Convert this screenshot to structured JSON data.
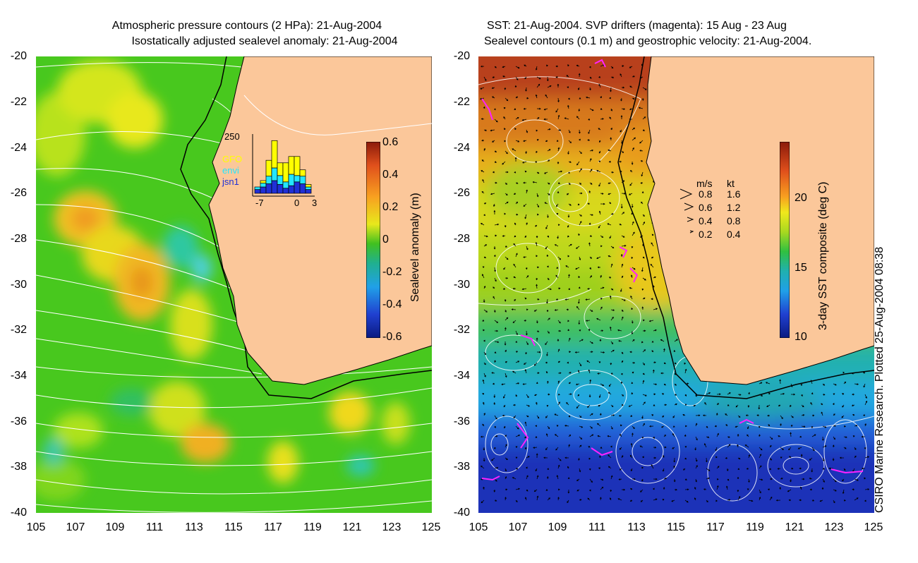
{
  "left_panel": {
    "title_line1": "Atmospheric pressure contours (2 HPa): 21-Aug-2004",
    "title_line2": "Isostatically adjusted sealevel anomaly: 21-Aug-2004",
    "colorbar": {
      "label": "Sealevel anomaly (m)",
      "ticks": [
        "0.6",
        "0.4",
        "0.2",
        "0",
        "-0.2",
        "-0.4",
        "-0.6"
      ],
      "range": [
        -0.6,
        0.6
      ]
    },
    "inset": {
      "ymax_label": "250",
      "legend": [
        {
          "name": "GFO",
          "color": "#ffff00"
        },
        {
          "name": "envi",
          "color": "#22e6ff"
        },
        {
          "name": "jsn1",
          "color": "#1f2fd6"
        }
      ],
      "xticks": [
        "-7",
        "0",
        "3"
      ]
    }
  },
  "right_panel": {
    "title_line1": "SST: 21-Aug-2004. SVP drifters (magenta): 15 Aug - 23 Aug",
    "title_line2": "Sealevel contours (0.1 m) and geostrophic velocity: 21-Aug-2004.",
    "colorbar": {
      "label": "3-day SST composite (deg C)",
      "ticks": [
        "20",
        "15",
        "10"
      ],
      "range": [
        10,
        24
      ]
    },
    "velocity_legend": {
      "header_ms": "m/s",
      "header_kt": "kt",
      "rows": [
        {
          "ms": "0.8",
          "kt": "1.6"
        },
        {
          "ms": "0.6",
          "kt": "1.2"
        },
        {
          "ms": "0.4",
          "kt": "0.8"
        },
        {
          "ms": "0.2",
          "kt": "0.4"
        }
      ]
    }
  },
  "axes": {
    "y_labels": [
      "-20",
      "-22",
      "-24",
      "-26",
      "-28",
      "-30",
      "-32",
      "-34",
      "-36",
      "-38",
      "-40"
    ],
    "x_labels": [
      "105",
      "107",
      "109",
      "111",
      "113",
      "115",
      "117",
      "119",
      "121",
      "123",
      "125"
    ],
    "lon_range": [
      105,
      125
    ],
    "lat_range": [
      -40,
      -20
    ]
  },
  "credit": "CSIRO Marine Research. Plotted 25-Aug-2004 08:38",
  "colors": {
    "land": "#fbc79a",
    "coast": "#000000",
    "contour": "#ffffff",
    "drifter": "#ff22ff"
  }
}
